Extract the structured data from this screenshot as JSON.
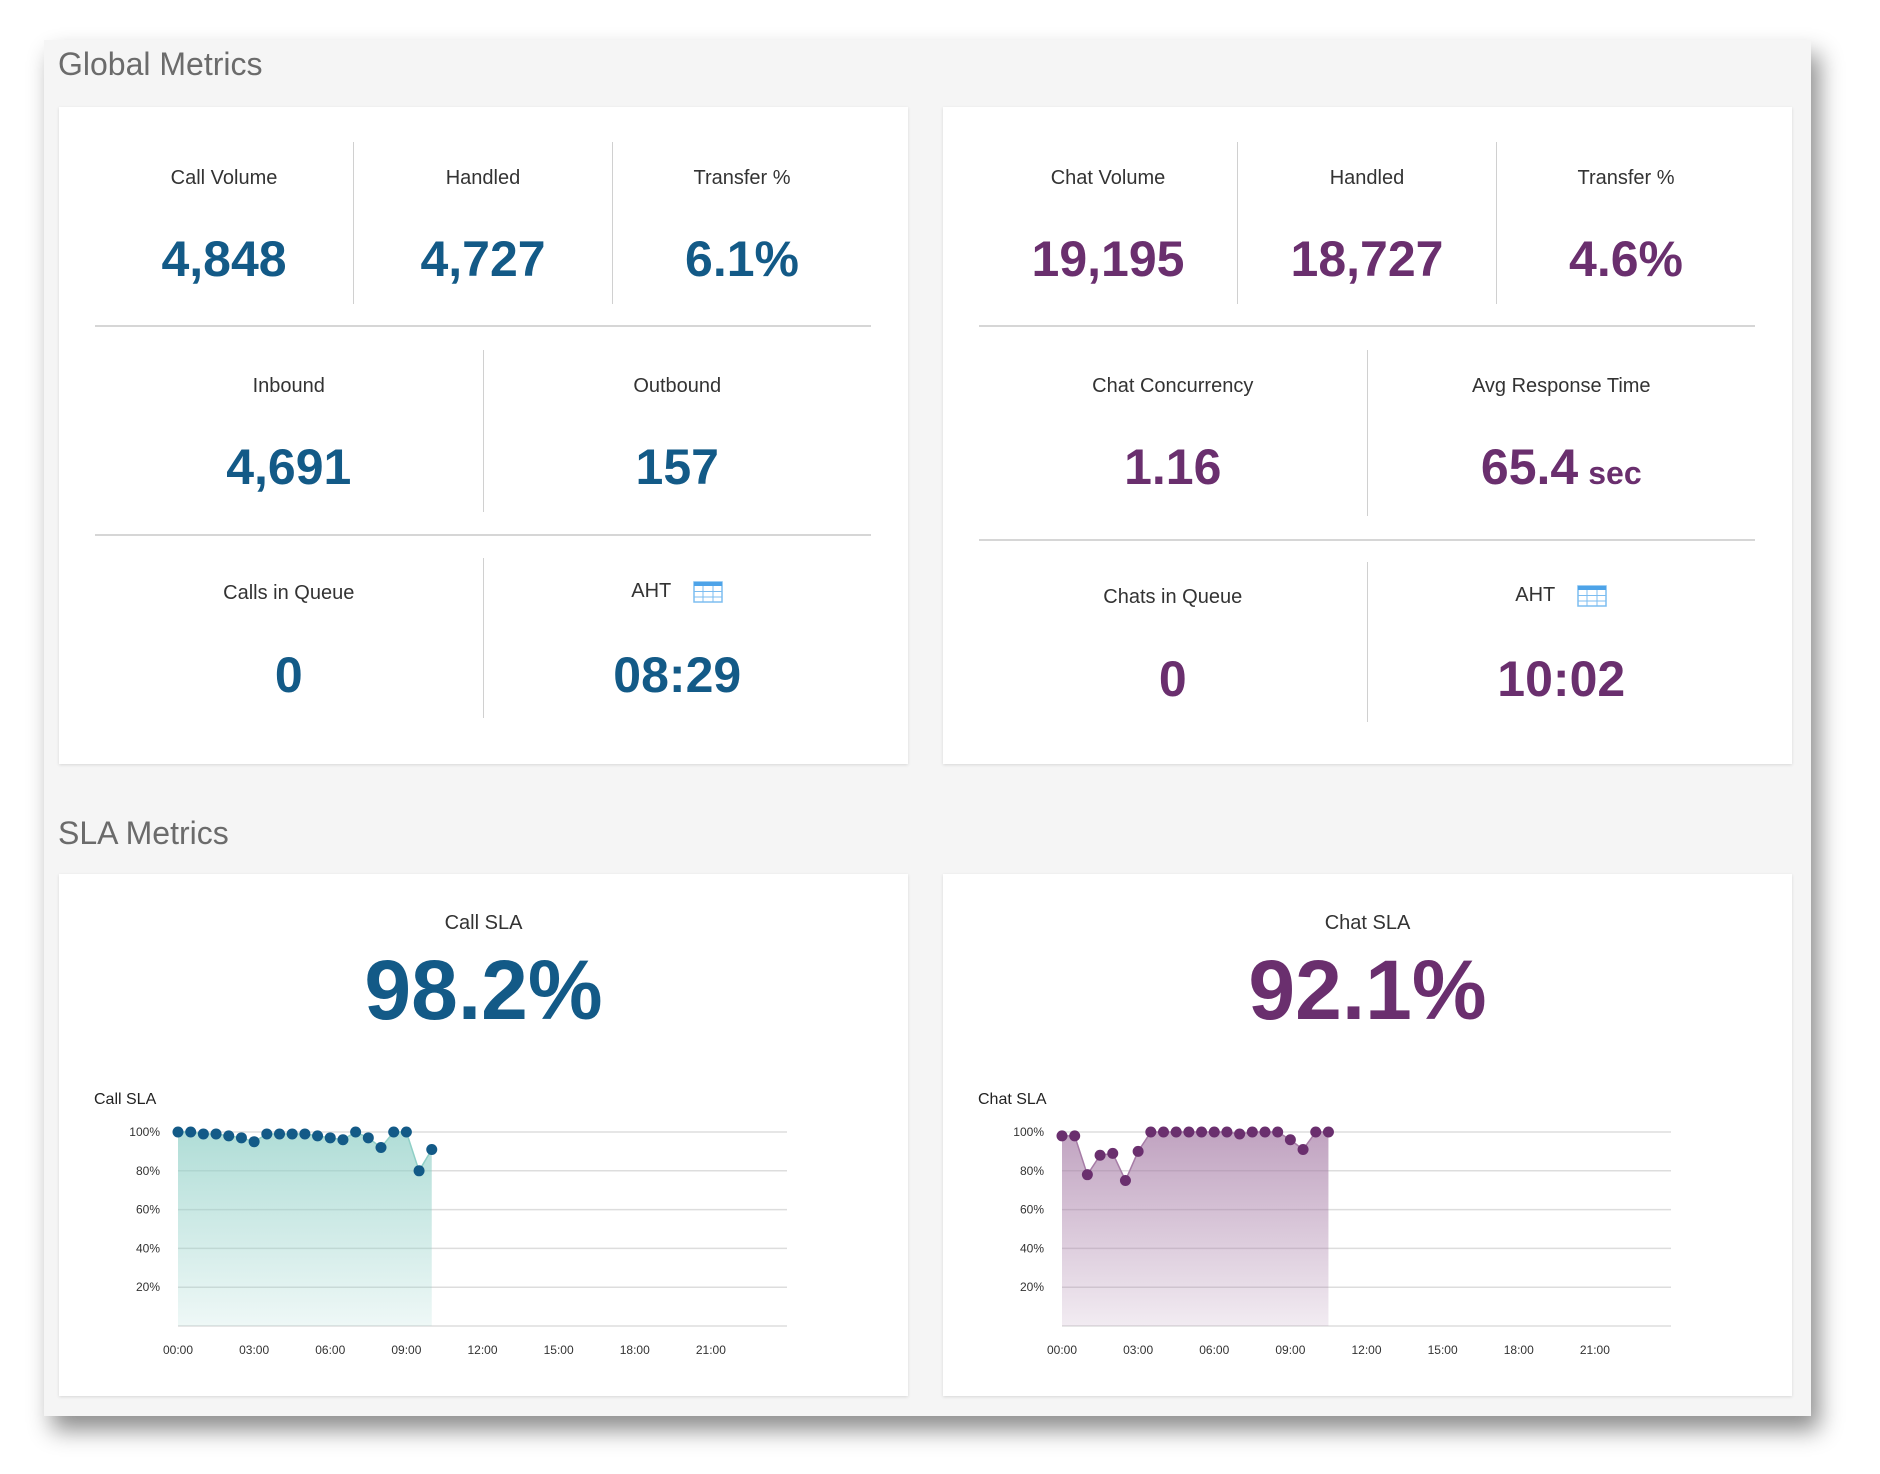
{
  "global": {
    "title": "Global Metrics",
    "call": {
      "row1": [
        {
          "label": "Call Volume",
          "value": "4,848"
        },
        {
          "label": "Handled",
          "value": "4,727"
        },
        {
          "label": "Transfer %",
          "value": "6.1%"
        }
      ],
      "row2": [
        {
          "label": "Inbound",
          "value": "4,691"
        },
        {
          "label": "Outbound",
          "value": "157"
        }
      ],
      "row3": [
        {
          "label": "Calls in Queue",
          "value": "0"
        },
        {
          "label": "AHT",
          "value": "08:29",
          "icon": "table-icon"
        }
      ]
    },
    "chat": {
      "row1": [
        {
          "label": "Chat Volume",
          "value": "19,195"
        },
        {
          "label": "Handled",
          "value": "18,727"
        },
        {
          "label": "Transfer %",
          "value": "4.6%"
        }
      ],
      "row2": [
        {
          "label": "Chat Concurrency",
          "value": "1.16"
        },
        {
          "label": "Avg Response Time",
          "value": "65.4",
          "unit": "sec"
        }
      ],
      "row3": [
        {
          "label": "Chats in Queue",
          "value": "0"
        },
        {
          "label": "AHT",
          "value": "10:02",
          "icon": "table-icon"
        }
      ]
    }
  },
  "sla": {
    "title": "SLA Metrics",
    "call": {
      "label": "Call SLA",
      "value": "98.2%"
    },
    "chat": {
      "label": "Chat SLA",
      "value": "92.1%"
    }
  },
  "colors": {
    "call": "#135a87",
    "chat": "#6a2f6e",
    "call_fill": "#8fcfc6",
    "chat_fill": "#a67ca6",
    "icon": "#4da3e8"
  },
  "chart_data": [
    {
      "type": "area",
      "title": "Call SLA",
      "x_tick_labels": [
        "00:00",
        "03:00",
        "06:00",
        "09:00",
        "12:00",
        "15:00",
        "18:00",
        "21:00"
      ],
      "y_tick_labels": [
        "100%",
        "80%",
        "60%",
        "40%",
        "20%"
      ],
      "xlim_hours": [
        0,
        24
      ],
      "ylim": [
        0,
        100
      ],
      "grid": true,
      "x": [
        "00:00",
        "00:30",
        "01:00",
        "01:30",
        "02:00",
        "02:30",
        "03:00",
        "03:30",
        "04:00",
        "04:30",
        "05:00",
        "05:30",
        "06:00",
        "06:30",
        "07:00",
        "07:30",
        "08:00",
        "08:30",
        "09:00",
        "09:30",
        "10:00"
      ],
      "values": [
        100,
        100,
        99,
        99,
        98,
        97,
        95,
        99,
        99,
        99,
        99,
        98,
        97,
        96,
        100,
        97,
        92,
        100,
        100,
        80,
        91
      ]
    },
    {
      "type": "area",
      "title": "Chat SLA",
      "x_tick_labels": [
        "00:00",
        "03:00",
        "06:00",
        "09:00",
        "12:00",
        "15:00",
        "18:00",
        "21:00"
      ],
      "y_tick_labels": [
        "100%",
        "80%",
        "60%",
        "40%",
        "20%"
      ],
      "xlim_hours": [
        0,
        24
      ],
      "ylim": [
        0,
        100
      ],
      "grid": true,
      "x": [
        "00:00",
        "00:30",
        "01:00",
        "01:30",
        "02:00",
        "02:30",
        "03:00",
        "03:30",
        "04:00",
        "04:30",
        "05:00",
        "05:30",
        "06:00",
        "06:30",
        "07:00",
        "07:30",
        "08:00",
        "08:30",
        "09:00",
        "09:30",
        "10:00",
        "10:30"
      ],
      "values": [
        98,
        98,
        78,
        88,
        89,
        75,
        90,
        100,
        100,
        100,
        100,
        100,
        100,
        100,
        99,
        100,
        100,
        100,
        96,
        91,
        100,
        100
      ]
    }
  ]
}
